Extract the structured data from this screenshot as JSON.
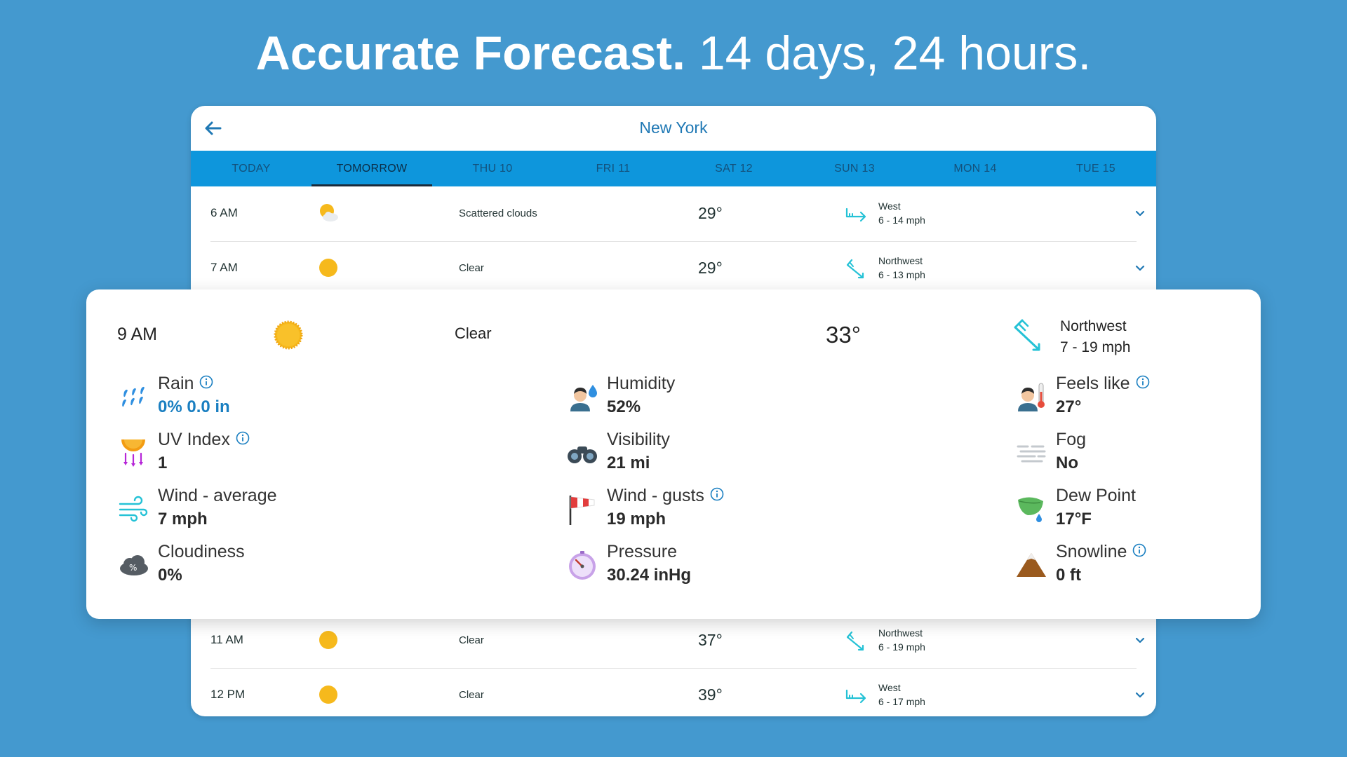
{
  "headline": {
    "bold": "Accurate Forecast.",
    "light": " 14 days, 24 hours."
  },
  "header": {
    "city": "New York"
  },
  "tabs": [
    "TODAY",
    "TOMORROW",
    "THU 10",
    "FRI 11",
    "SAT 12",
    "SUN 13",
    "MON 14",
    "TUE 15"
  ],
  "active_tab": "TOMORROW",
  "rows": [
    {
      "time": "6 AM",
      "icon": "partly-cloudy-icon",
      "condition": "Scattered clouds",
      "temp": "29°",
      "wind_icon": "wind-west-icon",
      "wind_dir": "West",
      "wind_speed": "6 - 14 mph"
    },
    {
      "time": "7 AM",
      "icon": "sun-icon",
      "condition": "Clear",
      "temp": "29°",
      "wind_icon": "wind-northwest-icon",
      "wind_dir": "Northwest",
      "wind_speed": "6 - 13 mph"
    },
    {
      "time": "11 AM",
      "icon": "sun-icon",
      "condition": "Clear",
      "temp": "37°",
      "wind_icon": "wind-northwest-icon",
      "wind_dir": "Northwest",
      "wind_speed": "6 - 19 mph"
    },
    {
      "time": "12 PM",
      "icon": "sun-icon",
      "condition": "Clear",
      "temp": "39°",
      "wind_icon": "wind-west-icon",
      "wind_dir": "West",
      "wind_speed": "6 - 17 mph"
    }
  ],
  "detail": {
    "time": "9 AM",
    "condition": "Clear",
    "temp": "33°",
    "wind_dir": "Northwest",
    "wind_speed": "7 - 19 mph",
    "metrics": {
      "rain": {
        "label": "Rain",
        "value": "0%  0.0 in",
        "icon": "rain-drops-icon"
      },
      "uv": {
        "label": "UV Index",
        "value": "1",
        "icon": "uv-index-icon"
      },
      "wind_avg": {
        "label": "Wind - average",
        "value": "7 mph",
        "icon": "wind-lines-icon"
      },
      "cloudiness": {
        "label": "Cloudiness",
        "value": "0%",
        "icon": "cloud-percent-icon"
      },
      "humidity": {
        "label": "Humidity",
        "value": "52%",
        "icon": "humidity-person-icon"
      },
      "visibility": {
        "label": "Visibility",
        "value": "21 mi",
        "icon": "binoculars-icon"
      },
      "wind_gusts": {
        "label": "Wind - gusts",
        "value": "19 mph",
        "icon": "windsock-icon"
      },
      "pressure": {
        "label": "Pressure",
        "value": "30.24 inHg",
        "icon": "barometer-icon"
      },
      "feels_like": {
        "label": "Feels like",
        "value": "27°",
        "icon": "thermometer-person-icon"
      },
      "fog": {
        "label": "Fog",
        "value": "No",
        "icon": "fog-icon"
      },
      "dew_point": {
        "label": "Dew Point",
        "value": "17°F",
        "icon": "leaf-dew-icon"
      },
      "snowline": {
        "label": "Snowline",
        "value": "0 ft",
        "icon": "mountain-icon"
      }
    }
  },
  "colors": {
    "background": "#4499cf",
    "tab_bar": "#0e96dc",
    "accent": "#1a7fc1",
    "sun": "#f6b91c",
    "wind_arrow": "#25c2d6"
  }
}
